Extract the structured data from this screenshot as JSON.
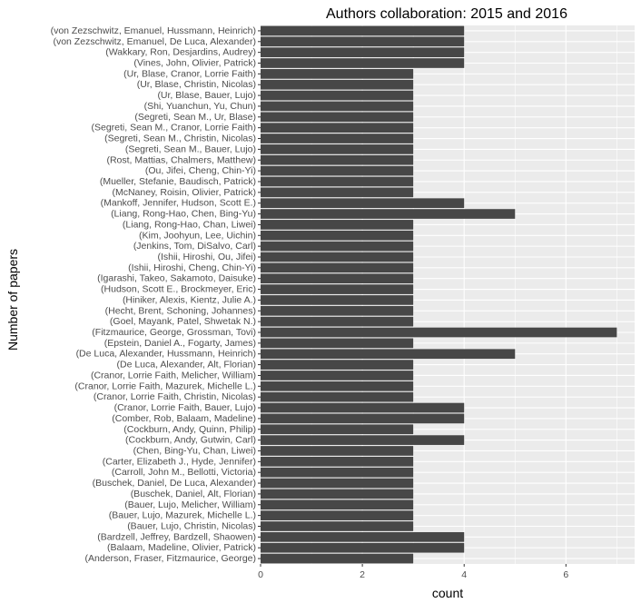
{
  "chart_data": {
    "type": "bar",
    "orientation": "horizontal",
    "title": "Authors collaboration: 2015 and 2016",
    "xlabel": "count",
    "ylabel": "Number of papers",
    "xlim": [
      0,
      7.35
    ],
    "xticks": [
      "0",
      "2",
      "4",
      "6"
    ],
    "grid": true,
    "legend": "none",
    "colors": {
      "panel": "#ebebeb",
      "bar": "#474747",
      "grid": "#ffffff"
    },
    "categories": [
      "(von Zezschwitz, Emanuel, Hussmann, Heinrich)",
      "(von Zezschwitz, Emanuel, De Luca, Alexander)",
      "(Wakkary, Ron, Desjardins, Audrey)",
      "(Vines, John, Olivier, Patrick)",
      "(Ur, Blase, Cranor, Lorrie Faith)",
      "(Ur, Blase, Christin, Nicolas)",
      "(Ur, Blase, Bauer, Lujo)",
      "(Shi, Yuanchun, Yu, Chun)",
      "(Segreti, Sean M., Ur, Blase)",
      "(Segreti, Sean M., Cranor, Lorrie Faith)",
      "(Segreti, Sean M., Christin, Nicolas)",
      "(Segreti, Sean M., Bauer, Lujo)",
      "(Rost, Mattias, Chalmers, Matthew)",
      "(Ou, Jifei, Cheng, Chin-Yi)",
      "(Mueller, Stefanie, Baudisch, Patrick)",
      "(McNaney, Roisin, Olivier, Patrick)",
      "(Mankoff, Jennifer, Hudson, Scott E.)",
      "(Liang, Rong-Hao, Chen, Bing-Yu)",
      "(Liang, Rong-Hao, Chan, Liwei)",
      "(Kim, Joohyun, Lee, Uichin)",
      "(Jenkins, Tom, DiSalvo, Carl)",
      "(Ishii, Hiroshi, Ou, Jifei)",
      "(Ishii, Hiroshi, Cheng, Chin-Yi)",
      "(Igarashi, Takeo, Sakamoto, Daisuke)",
      "(Hudson, Scott E., Brockmeyer, Eric)",
      "(Hiniker, Alexis, Kientz, Julie A.)",
      "(Hecht, Brent, Schoning, Johannes)",
      "(Goel, Mayank, Patel, Shwetak N.)",
      "(Fitzmaurice, George, Grossman, Tovi)",
      "(Epstein, Daniel A., Fogarty, James)",
      "(De Luca, Alexander, Hussmann, Heinrich)",
      "(De Luca, Alexander, Alt, Florian)",
      "(Cranor, Lorrie Faith, Melicher, William)",
      "(Cranor, Lorrie Faith, Mazurek, Michelle L.)",
      "(Cranor, Lorrie Faith, Christin, Nicolas)",
      "(Cranor, Lorrie Faith, Bauer, Lujo)",
      "(Comber, Rob, Balaam, Madeline)",
      "(Cockburn, Andy, Quinn, Philip)",
      "(Cockburn, Andy, Gutwin, Carl)",
      "(Chen, Bing-Yu, Chan, Liwei)",
      "(Carter, Elizabeth J., Hyde, Jennifer)",
      "(Carroll, John M., Bellotti, Victoria)",
      "(Buschek, Daniel, De Luca, Alexander)",
      "(Buschek, Daniel, Alt, Florian)",
      "(Bauer, Lujo, Melicher, William)",
      "(Bauer, Lujo, Mazurek, Michelle L.)",
      "(Bauer, Lujo, Christin, Nicolas)",
      "(Bardzell, Jeffrey, Bardzell, Shaowen)",
      "(Balaam, Madeline, Olivier, Patrick)",
      "(Anderson, Fraser, Fitzmaurice, George)"
    ],
    "values": [
      4,
      4,
      4,
      4,
      3,
      3,
      3,
      3,
      3,
      3,
      3,
      3,
      3,
      3,
      3,
      3,
      4,
      5,
      3,
      3,
      3,
      3,
      3,
      3,
      3,
      3,
      3,
      3,
      7,
      3,
      5,
      3,
      3,
      3,
      3,
      4,
      4,
      3,
      4,
      3,
      3,
      3,
      3,
      3,
      3,
      3,
      3,
      4,
      4,
      3
    ]
  }
}
